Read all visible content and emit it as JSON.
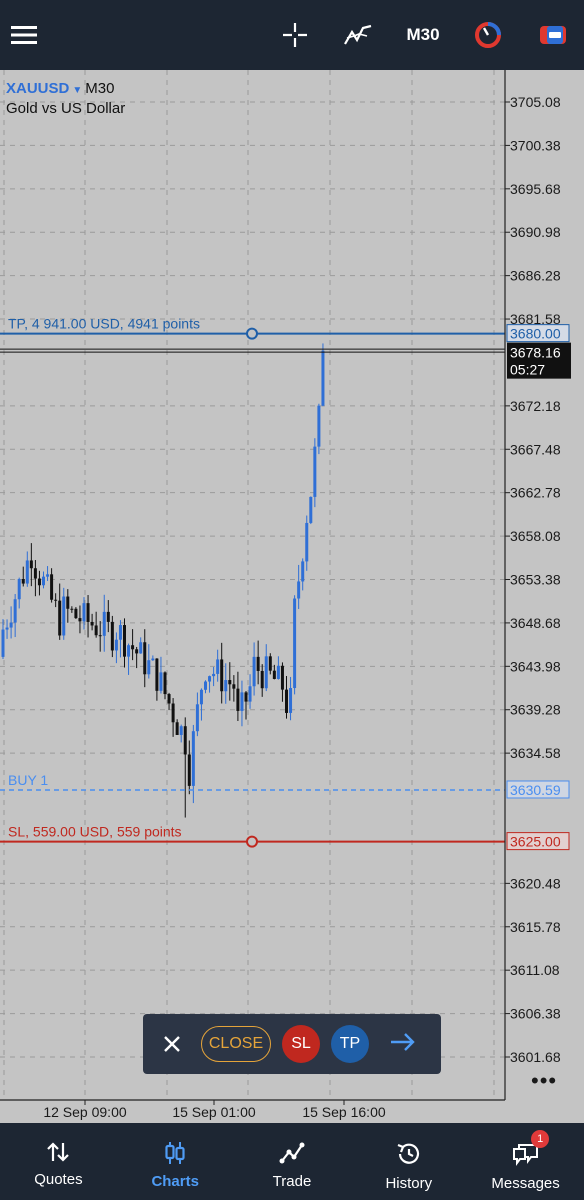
{
  "toolbar": {
    "timeframe": "M30",
    "icons": [
      "menu-icon",
      "crosshair-icon",
      "indicators-icon",
      "timeframe-label",
      "one-click-trading-icon",
      "trade-panel-icon"
    ]
  },
  "symbol": {
    "name": "XAUUSD",
    "timeframe": "M30",
    "description": "Gold vs US Dollar"
  },
  "price_axis": {
    "labels": [
      "3705.08",
      "3700.38",
      "3695.68",
      "3690.98",
      "3686.28",
      "3681.58",
      "3672.18",
      "3667.48",
      "3662.78",
      "3658.08",
      "3653.38",
      "3648.68",
      "3643.98",
      "3639.28",
      "3634.58",
      "3620.48",
      "3615.78",
      "3611.08",
      "3606.38",
      "3601.68"
    ],
    "tp_tag": "3680.00",
    "bid_tag": "3678.16",
    "bar_timer": "05:27",
    "buy_tag": "3630.59",
    "sl_tag": "3625.00"
  },
  "time_axis": {
    "labels": [
      "12 Sep 09:00",
      "15 Sep 01:00",
      "15 Sep 16:00"
    ]
  },
  "lines": {
    "tp_label": "TP, 4 941.00 USD, 4941 points",
    "buy_label": "BUY 1",
    "sl_label": "SL, 559.00 USD, 559 points"
  },
  "colors": {
    "background": "#1d2633",
    "chart_bg": "#c4c4c4",
    "bull_candle": "#2f6fd6",
    "bear_candle": "#111111",
    "tp_line": "#1f5fa8",
    "buy_line": "#4a8ef0",
    "sl_line": "#c0281f",
    "accent": "#4f9cf5",
    "close_outline": "#e5a43a"
  },
  "trade_panel": {
    "close_label": "CLOSE",
    "sl_label": "SL",
    "tp_label": "TP"
  },
  "nav": {
    "items": [
      {
        "label": "Quotes",
        "icon": "quotes-icon"
      },
      {
        "label": "Charts",
        "icon": "charts-icon"
      },
      {
        "label": "Trade",
        "icon": "trade-icon"
      },
      {
        "label": "History",
        "icon": "history-icon"
      },
      {
        "label": "Messages",
        "icon": "messages-icon"
      }
    ],
    "messages_badge": "1"
  }
}
